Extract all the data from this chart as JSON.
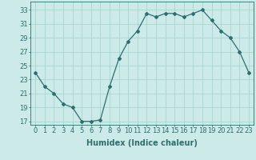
{
  "x": [
    0,
    1,
    2,
    3,
    4,
    5,
    6,
    7,
    8,
    9,
    10,
    11,
    12,
    13,
    14,
    15,
    16,
    17,
    18,
    19,
    20,
    21,
    22,
    23
  ],
  "y": [
    24,
    22,
    21,
    19.5,
    19,
    17,
    17,
    17.2,
    22,
    26,
    28.5,
    30,
    32.5,
    32,
    32.5,
    32.5,
    32,
    32.5,
    33,
    31.5,
    30,
    29,
    27,
    24
  ],
  "line_color": "#2e6e6e",
  "marker": "D",
  "marker_size": 2,
  "bg_color": "#cceae8",
  "grid_color": "#aad4d2",
  "xlabel": "Humidex (Indice chaleur)",
  "xlabel_fontsize": 7,
  "tick_color": "#2e6e6e",
  "tick_fontsize": 6,
  "yticks": [
    17,
    19,
    21,
    23,
    25,
    27,
    29,
    31,
    33
  ],
  "xtick_labels": [
    "0",
    "1",
    "2",
    "3",
    "4",
    "5",
    "6",
    "7",
    "8",
    "9",
    "10",
    "11",
    "12",
    "13",
    "14",
    "15",
    "16",
    "17",
    "18",
    "19",
    "20",
    "21",
    "22",
    "23"
  ],
  "ylim": [
    16.5,
    34.2
  ],
  "xlim": [
    -0.5,
    23.5
  ]
}
